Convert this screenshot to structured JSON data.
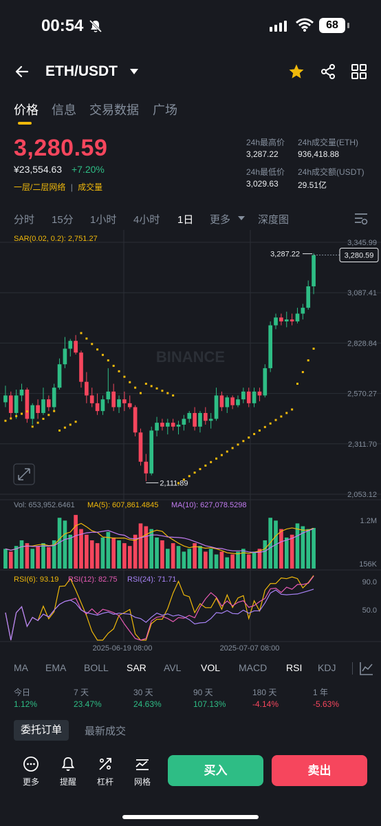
{
  "status_bar": {
    "time": "00:54",
    "battery": "68"
  },
  "header": {
    "pair": "ETH/USDT"
  },
  "tabs": [
    "价格",
    "信息",
    "交易数据",
    "广场"
  ],
  "ticker": {
    "last_price": "3,280.59",
    "fiat": "¥23,554.63",
    "change": "+7.20%",
    "layer_link": "一层/二层网络",
    "volume_link": "成交量",
    "high_label": "24h最高价",
    "high": "3,287.22",
    "low_label": "24h最低价",
    "low": "3,029.63",
    "vol_eth_label": "24h成交量(ETH)",
    "vol_eth": "936,418.88",
    "vol_usdt_label": "24h成交额(USDT)",
    "vol_usdt": "29.51亿"
  },
  "intervals": [
    "分时",
    "15分",
    "1小时",
    "4小时",
    "1日",
    "更多",
    "深度图"
  ],
  "chart_data": {
    "type": "candlestick",
    "interval": "1日",
    "sar_label": "SAR(0.02, 0.2): 2,751.27",
    "watermark": "BINANCE",
    "y_ticks": [
      "3,345.99",
      "3,087.41",
      "2,828.84",
      "2,570.27",
      "2,311.70",
      "2,053.12"
    ],
    "ylim": [
      2053.12,
      3345.99
    ],
    "high_marker": "3,287.22",
    "low_marker": "2,111.89",
    "current_price": "3,280.59",
    "candles": [
      [
        2525,
        2610,
        2500,
        2560
      ],
      [
        2560,
        2580,
        2440,
        2470
      ],
      [
        2470,
        2590,
        2440,
        2560
      ],
      [
        2560,
        2620,
        2530,
        2590
      ],
      [
        2590,
        2600,
        2420,
        2440
      ],
      [
        2440,
        2520,
        2410,
        2510
      ],
      [
        2510,
        2540,
        2440,
        2470
      ],
      [
        2470,
        2600,
        2460,
        2540
      ],
      [
        2540,
        2560,
        2480,
        2500
      ],
      [
        2500,
        2620,
        2480,
        2600
      ],
      [
        2600,
        2750,
        2590,
        2720
      ],
      [
        2720,
        2860,
        2700,
        2800
      ],
      [
        2800,
        2850,
        2760,
        2840
      ],
      [
        2840,
        2870,
        2770,
        2780
      ],
      [
        2780,
        2790,
        2600,
        2630
      ],
      [
        2630,
        2680,
        2520,
        2560
      ],
      [
        2560,
        2600,
        2500,
        2520
      ],
      [
        2520,
        2570,
        2460,
        2480
      ],
      [
        2480,
        2560,
        2460,
        2540
      ],
      [
        2540,
        2700,
        2520,
        2580
      ],
      [
        2580,
        2620,
        2480,
        2500
      ],
      [
        2500,
        2560,
        2470,
        2540
      ],
      [
        2540,
        2580,
        2480,
        2520
      ],
      [
        2520,
        2560,
        2490,
        2500
      ],
      [
        2500,
        2510,
        2350,
        2370
      ],
      [
        2370,
        2390,
        2200,
        2220
      ],
      [
        2220,
        2260,
        2120,
        2160
      ],
      [
        2160,
        2400,
        2150,
        2380
      ],
      [
        2380,
        2450,
        2350,
        2420
      ],
      [
        2420,
        2440,
        2380,
        2400
      ],
      [
        2400,
        2440,
        2360,
        2420
      ],
      [
        2420,
        2440,
        2380,
        2400
      ],
      [
        2400,
        2430,
        2360,
        2410
      ],
      [
        2410,
        2460,
        2380,
        2440
      ],
      [
        2440,
        2480,
        2420,
        2470
      ],
      [
        2470,
        2500,
        2380,
        2400
      ],
      [
        2400,
        2480,
        2370,
        2470
      ],
      [
        2470,
        2500,
        2410,
        2430
      ],
      [
        2430,
        2470,
        2390,
        2440
      ],
      [
        2440,
        2600,
        2430,
        2560
      ],
      [
        2560,
        2580,
        2480,
        2500
      ],
      [
        2500,
        2560,
        2470,
        2550
      ],
      [
        2550,
        2560,
        2490,
        2510
      ],
      [
        2510,
        2560,
        2500,
        2540
      ],
      [
        2540,
        2600,
        2520,
        2580
      ],
      [
        2580,
        2600,
        2500,
        2520
      ],
      [
        2520,
        2600,
        2500,
        2580
      ],
      [
        2580,
        2600,
        2530,
        2560
      ],
      [
        2560,
        2720,
        2550,
        2700
      ],
      [
        2700,
        2940,
        2680,
        2920
      ],
      [
        2920,
        2980,
        2900,
        2960
      ],
      [
        2960,
        2980,
        2920,
        2940
      ],
      [
        2940,
        2990,
        2910,
        2950
      ],
      [
        2950,
        2980,
        2920,
        2940
      ],
      [
        2940,
        3010,
        2930,
        2980
      ],
      [
        2980,
        3030,
        2950,
        3010
      ],
      [
        3010,
        3150,
        3000,
        3120
      ],
      [
        3120,
        3290,
        3080,
        3280
      ]
    ],
    "volume": {
      "label": "Vol: 653,952.6461",
      "ma5_label": "MA(5): 607,861.4845",
      "ma10_label": "MA(10): 627,078.5298",
      "axis": [
        "1.2M",
        "156K"
      ],
      "values": [
        0.35,
        0.3,
        0.4,
        0.5,
        0.45,
        0.35,
        0.4,
        0.45,
        0.38,
        0.5,
        0.9,
        0.85,
        0.6,
        0.95,
        0.7,
        0.6,
        0.5,
        0.45,
        0.55,
        0.65,
        0.55,
        0.5,
        0.45,
        0.4,
        0.6,
        0.8,
        0.75,
        0.7,
        0.55,
        0.5,
        0.35,
        0.45,
        0.4,
        0.3,
        0.35,
        0.45,
        0.4,
        0.3,
        0.35,
        0.25,
        0.3,
        0.2,
        0.25,
        0.3,
        0.35,
        0.25,
        0.3,
        0.35,
        0.5,
        0.9,
        0.85,
        0.7,
        0.55,
        0.6,
        0.8,
        0.75,
        0.7,
        0.72
      ]
    },
    "rsi": {
      "rsi6_label": "RSI(6): 93.19",
      "rsi12_label": "RSI(12): 82.75",
      "rsi24_label": "RSI(24): 71.71",
      "axis": [
        "90.0",
        "50.0"
      ]
    },
    "x_ticks": [
      "2025-06-19 08:00",
      "2025-07-07 08:00"
    ]
  },
  "indicators": [
    "MA",
    "EMA",
    "BOLL",
    "SAR",
    "AVL",
    "VOL",
    "MACD",
    "RSI",
    "KDJ"
  ],
  "performance": [
    {
      "label": "今日",
      "value": "1.12%",
      "dir": "up"
    },
    {
      "label": "7 天",
      "value": "23.47%",
      "dir": "up"
    },
    {
      "label": "30 天",
      "value": "24.63%",
      "dir": "up"
    },
    {
      "label": "90 天",
      "value": "107.13%",
      "dir": "up"
    },
    {
      "label": "180 天",
      "value": "-4.14%",
      "dir": "down"
    },
    {
      "label": "1 年",
      "value": "-5.63%",
      "dir": "down"
    }
  ],
  "order_tabs": [
    "委托订单",
    "最新成交"
  ],
  "bottom_bar": {
    "more": "更多",
    "alert": "提醒",
    "leverage": "杠杆",
    "grid": "网格",
    "buy": "买入",
    "sell": "卖出"
  },
  "colors": {
    "up": "#2ebd85",
    "down": "#f6465d",
    "accent": "#f0b90b",
    "bg": "#181a20"
  }
}
